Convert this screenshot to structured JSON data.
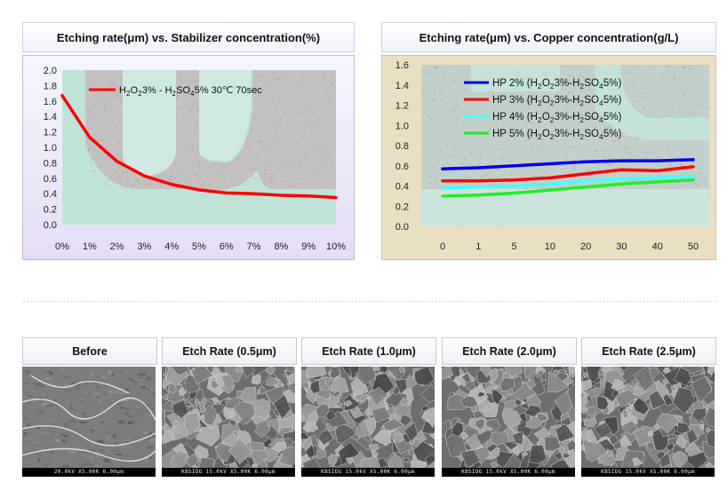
{
  "colors": {
    "red": "#ff0000",
    "blue": "#0000ee",
    "cyan": "#44ffff",
    "green": "#22ee22"
  },
  "chart_data": [
    {
      "type": "line",
      "title": "Etching rate(μm) vs. Stabilizer concentration(%)",
      "categories": [
        "0%",
        "1%",
        "2%",
        "3%",
        "4%",
        "5%",
        "6%",
        "7%",
        "8%",
        "9%",
        "10%"
      ],
      "y_ticks": [
        "2.0",
        "1.8",
        "1.6",
        "1.4",
        "1.2",
        "1.0",
        "0.8",
        "0.6",
        "0.4",
        "0.2",
        "0.0"
      ],
      "ylim": [
        0,
        2
      ],
      "series": [
        {
          "name": "H2O2 3% - H2SO4 5% 30℃ 70sec",
          "values": [
            1.67,
            1.13,
            0.82,
            0.63,
            0.52,
            0.45,
            0.41,
            0.4,
            0.38,
            0.37,
            0.35
          ]
        }
      ]
    },
    {
      "type": "line",
      "title": "Etching rate(μm) vs. Copper concentration(g/L)",
      "categories": [
        "0",
        "1",
        "5",
        "10",
        "20",
        "30",
        "40",
        "50"
      ],
      "y_ticks": [
        "1.6",
        "1.4",
        "1.2",
        "1.0",
        "0.8",
        "0.6",
        "0.4",
        "0.2",
        "0.0"
      ],
      "ylim": [
        0,
        1.6
      ],
      "series": [
        {
          "name": "HP 2% (H2O2 3%-H2SO4 5%)",
          "values": [
            0.57,
            0.58,
            0.6,
            0.62,
            0.64,
            0.65,
            0.65,
            0.66
          ]
        },
        {
          "name": "HP 3% (H2O2 3%-H2SO4 5%)",
          "values": [
            0.45,
            0.45,
            0.46,
            0.48,
            0.52,
            0.56,
            0.55,
            0.59
          ]
        },
        {
          "name": "HP 4% (H2O2 3%-H2SO4 5%)",
          "values": [
            0.38,
            0.39,
            0.4,
            0.42,
            0.45,
            0.47,
            0.48,
            0.5
          ]
        },
        {
          "name": "HP 5% (H2O2 3%-H2SO4 5%)",
          "values": [
            0.3,
            0.31,
            0.33,
            0.36,
            0.39,
            0.42,
            0.44,
            0.46
          ]
        }
      ]
    }
  ],
  "sem": {
    "items": [
      {
        "label": "Before",
        "scale_text": "20.0kV X5.00K 6.00μm"
      },
      {
        "label": "Etch Rate (0.5μm)",
        "scale_text": "KBSIDG 15.0kV X5.00K 6.00μm"
      },
      {
        "label": "Etch Rate (1.0μm)",
        "scale_text": "KBSIDG 15.0kV X5.00K 6.00μm"
      },
      {
        "label": "Etch Rate (2.0μm)",
        "scale_text": "KBSIDG 15.0kV X5.00K 6.00μm"
      },
      {
        "label": "Etch Rate (2.5μm)",
        "scale_text": "KBSIDG 15.0kV X5.00K 6.00μm"
      }
    ]
  }
}
